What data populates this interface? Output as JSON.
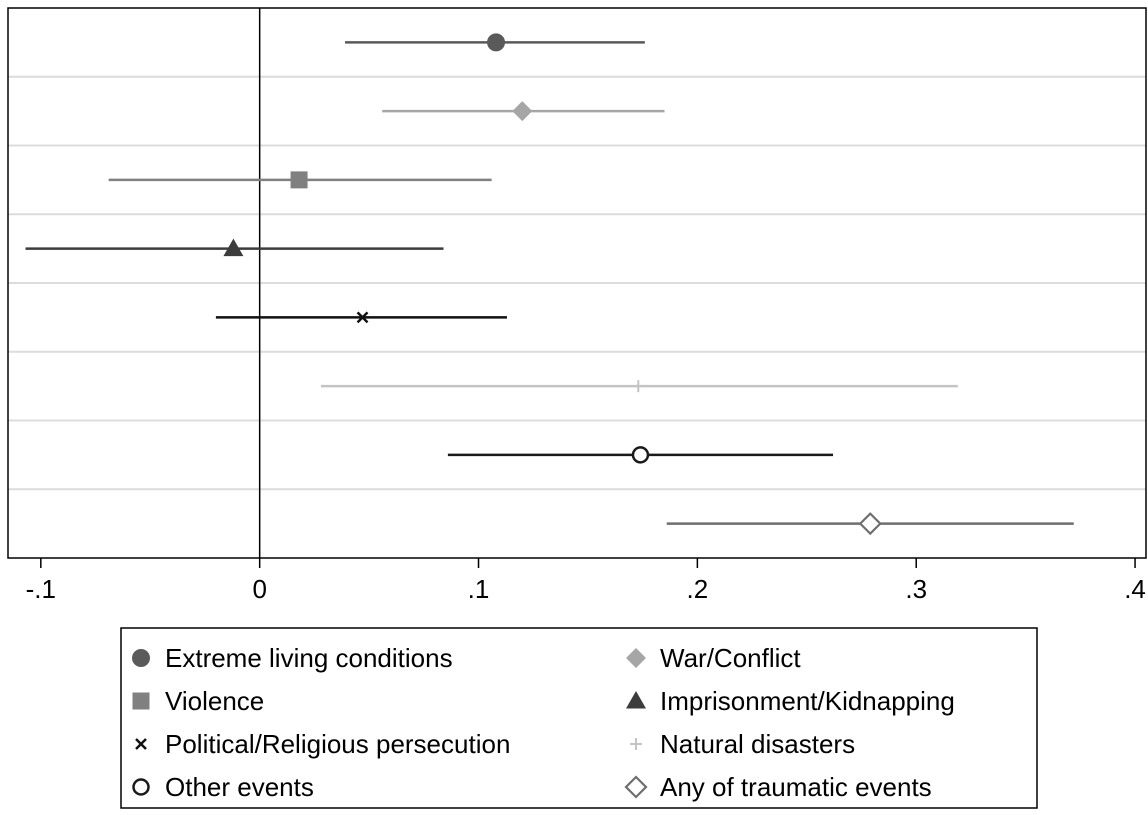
{
  "chart_data": {
    "type": "scatter",
    "subtype": "coefficient-plot",
    "title": "",
    "xlabel": "",
    "ylabel": "",
    "xlim": [
      -0.115,
      0.405
    ],
    "x_ticks": [
      {
        "value": -0.1,
        "label": "-.1"
      },
      {
        "value": 0,
        "label": "0"
      },
      {
        "value": 0.1,
        "label": ".1"
      },
      {
        "value": 0.2,
        "label": ".2"
      },
      {
        "value": 0.3,
        "label": ".3"
      },
      {
        "value": 0.4,
        "label": ".4"
      }
    ],
    "reference_line_x": 0,
    "grid": "horizontal",
    "legend_placement": "bottom",
    "series": [
      {
        "name": "Extreme living conditions",
        "estimate": 0.108,
        "ci_low": 0.039,
        "ci_high": 0.176,
        "marker": "circle-filled",
        "color": "#5a5a5a"
      },
      {
        "name": "War/Conflict",
        "estimate": 0.12,
        "ci_low": 0.056,
        "ci_high": 0.185,
        "marker": "diamond-filled",
        "color": "#a6a6a6"
      },
      {
        "name": "Violence",
        "estimate": 0.018,
        "ci_low": -0.069,
        "ci_high": 0.106,
        "marker": "square-filled",
        "color": "#808080"
      },
      {
        "name": "Imprisonment/Kidnapping",
        "estimate": -0.012,
        "ci_low": -0.107,
        "ci_high": 0.084,
        "marker": "triangle-filled",
        "color": "#3c3c3c"
      },
      {
        "name": "Political/Religious persecution",
        "estimate": 0.047,
        "ci_low": -0.02,
        "ci_high": 0.113,
        "marker": "x",
        "color": "#111111"
      },
      {
        "name": "Natural disasters",
        "estimate": 0.173,
        "ci_low": 0.028,
        "ci_high": 0.319,
        "marker": "plus",
        "color": "#c4c4c4"
      },
      {
        "name": "Other events",
        "estimate": 0.174,
        "ci_low": 0.086,
        "ci_high": 0.262,
        "marker": "circle-hollow",
        "color": "#1a1a1a"
      },
      {
        "name": "Any of traumatic events",
        "estimate": 0.279,
        "ci_low": 0.186,
        "ci_high": 0.372,
        "marker": "diamond-hollow",
        "color": "#6e6e6e"
      }
    ]
  }
}
